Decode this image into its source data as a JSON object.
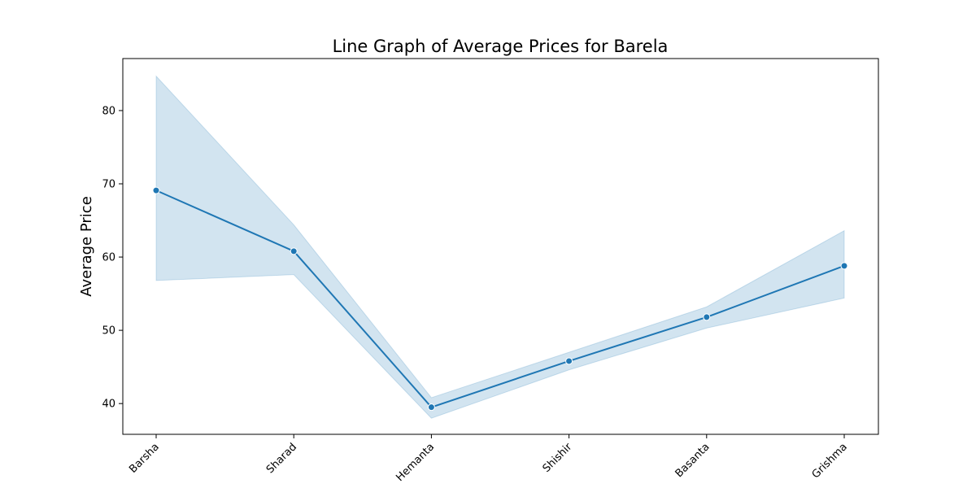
{
  "chart_data": {
    "type": "line",
    "title": "Line Graph of Average Prices for Barela",
    "xlabel": "",
    "ylabel": "Average Price",
    "categories": [
      "Barsha",
      "Sharad",
      "Hemanta",
      "Shishir",
      "Basanta",
      "Grishma"
    ],
    "values": [
      69.1,
      60.8,
      39.5,
      45.8,
      51.8,
      58.8
    ],
    "ci_lower": [
      56.8,
      57.6,
      38.0,
      44.6,
      50.3,
      54.4
    ],
    "ci_upper": [
      84.7,
      64.4,
      40.8,
      47.0,
      53.2,
      63.6
    ],
    "ylim": [
      35.8,
      87.1
    ],
    "yticks": [
      40,
      50,
      60,
      70,
      80
    ],
    "grid": false,
    "markers": true,
    "line_color": "#1f77b4",
    "band_color": "#1f77b4",
    "band_opacity": 0.2
  }
}
